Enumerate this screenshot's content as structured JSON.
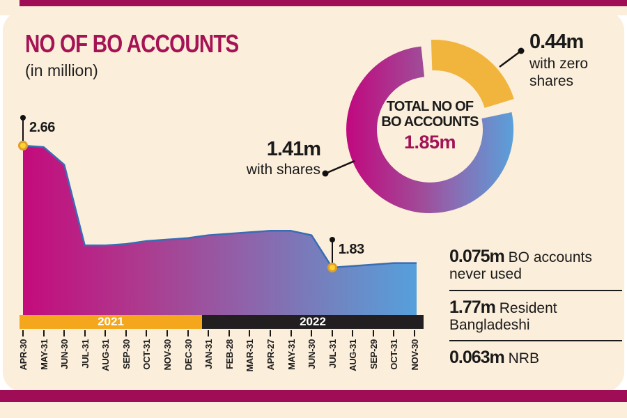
{
  "title": "NO OF BO ACCOUNTS",
  "subtitle": "(in million)",
  "colors": {
    "background_cream": "#fbeeda",
    "bar_magenta": "#9e0d55",
    "title_magenta": "#a51355",
    "band_2021_orange": "#f4a71d",
    "band_2022_black": "#231f20",
    "area_gradient_left": "#c40b7c",
    "area_gradient_mid": "#9160a8",
    "area_gradient_right": "#55a0dc",
    "area_stroke_blue": "#3a6cb4",
    "donut_yellow": "#f1b53e",
    "marker_yellow": "#ffd32f"
  },
  "chart_data": {
    "type": "area",
    "title": "NO OF BO ACCOUNTS (in million)",
    "categories": [
      "APR-30",
      "MAY-31",
      "JUN-30",
      "JUL-31",
      "AUG-31",
      "SEP-30",
      "OCT-31",
      "NOV-30",
      "DEC-30",
      "JAN-31",
      "FEB-28",
      "MAR-31",
      "APR-27",
      "MAY-31",
      "JUN-30",
      "JUL-31",
      "AUG-31",
      "SEP-29",
      "OCT-31",
      "NOV-30"
    ],
    "values": [
      2.66,
      2.65,
      2.53,
      1.98,
      1.98,
      1.99,
      2.01,
      2.02,
      2.03,
      2.05,
      2.06,
      2.07,
      2.08,
      2.08,
      2.05,
      1.83,
      1.84,
      1.85,
      1.86,
      1.86
    ],
    "unit": "million",
    "year_bands": [
      {
        "year": "2021",
        "from_index": 0,
        "to_index": 8
      },
      {
        "year": "2022",
        "from_index": 9,
        "to_index": 19
      }
    ],
    "annotations": [
      {
        "index": 0,
        "category": "APR-30",
        "year": "2021",
        "value": 2.66,
        "label": "2.66"
      },
      {
        "index": 15,
        "category": "JUL-31",
        "year": "2022",
        "value": 1.83,
        "label": "1.83"
      }
    ],
    "grid": false,
    "y_axis_shown": false
  },
  "donut": {
    "center_line1": "TOTAL NO OF",
    "center_line2": "BO ACCOUNTS",
    "center_value": "1.85m",
    "segments": [
      {
        "value": "1.41m",
        "label": "with shares",
        "style": "magenta-blue-gradient"
      },
      {
        "value": "0.44m",
        "label": "with zero shares",
        "style": "yellow-exploded"
      }
    ]
  },
  "stats": [
    {
      "value": "0.075m",
      "label": "BO accounts never used"
    },
    {
      "value": "1.77m",
      "label": "Resident Bangladeshi"
    },
    {
      "value": "0.063m",
      "label": "NRB"
    }
  ]
}
